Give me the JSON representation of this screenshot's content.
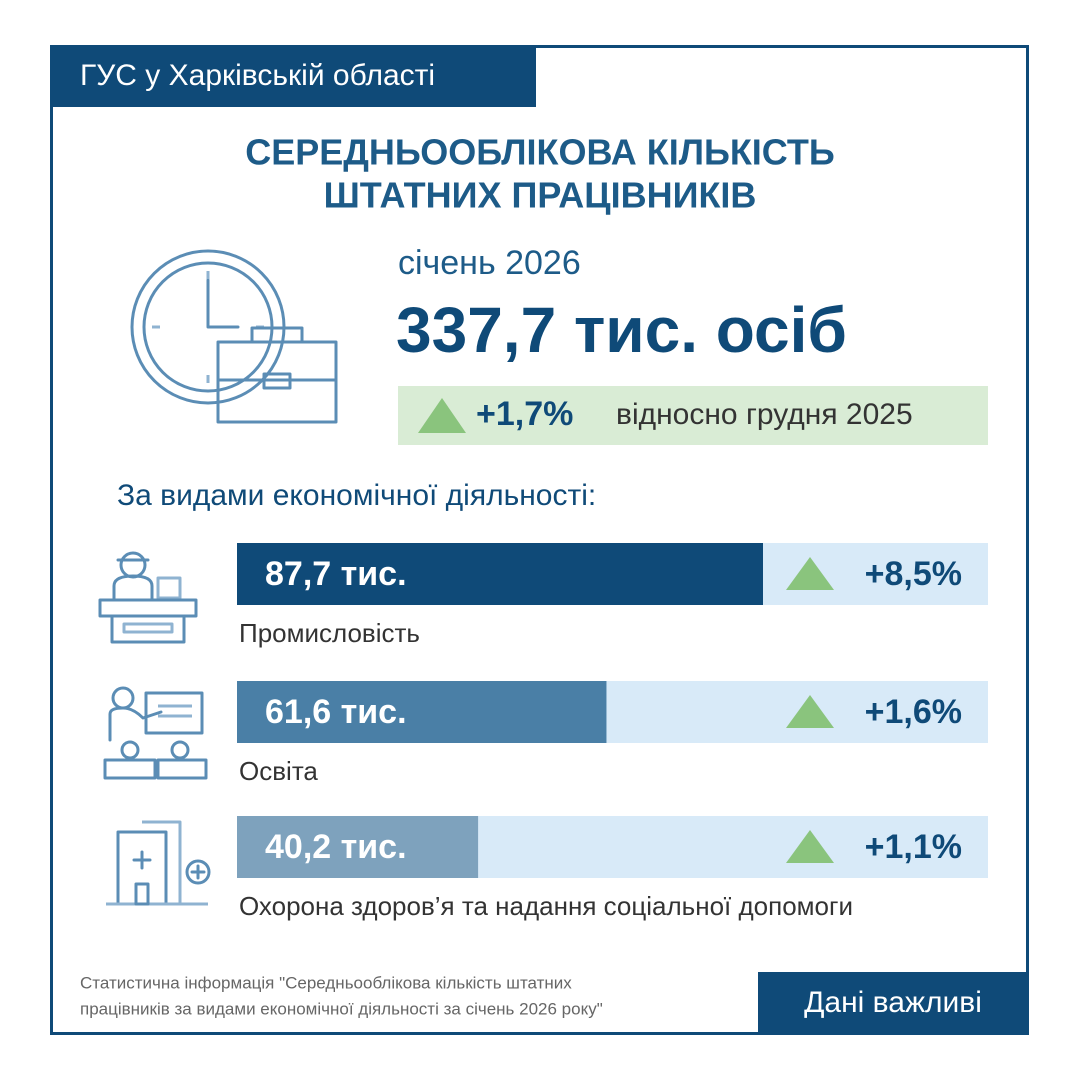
{
  "header": {
    "organization": "ГУС у Харківській області",
    "title_lines": [
      "СЕРЕДНЬООБЛІКОВА КІЛЬКІСТЬ",
      "ШТАТНИХ ПРАЦІВНИКІВ"
    ]
  },
  "summary": {
    "period": "січень 2026",
    "total": "337,7 тис. осіб",
    "change": "+1,7%",
    "comparison": "відносно грудня 2025"
  },
  "breakdown": {
    "title": "За видами економічної діяльності:",
    "sectors": [
      {
        "name": "Промисловість",
        "value": 87.7,
        "value_label": "87,7 тис.",
        "change": "+8,5%",
        "color": "#0f4a78"
      },
      {
        "name": "Освіта",
        "value": 61.6,
        "value_label": "61,6 тис.",
        "change": "+1,6%",
        "color": "#4a7fa6"
      },
      {
        "name": "Охорона здоров’я та надання соціальної допомоги",
        "value": 40.2,
        "value_label": "40,2 тис.",
        "change": "+1,1%",
        "color": "#7ea2bd"
      }
    ]
  },
  "footer": {
    "source_lines": [
      "Статистична інформація \"Середньооблікова кількість штатних",
      "працівників за видами економічної діяльності за січень 2026 року\""
    ],
    "button": "Дані важливі"
  }
}
